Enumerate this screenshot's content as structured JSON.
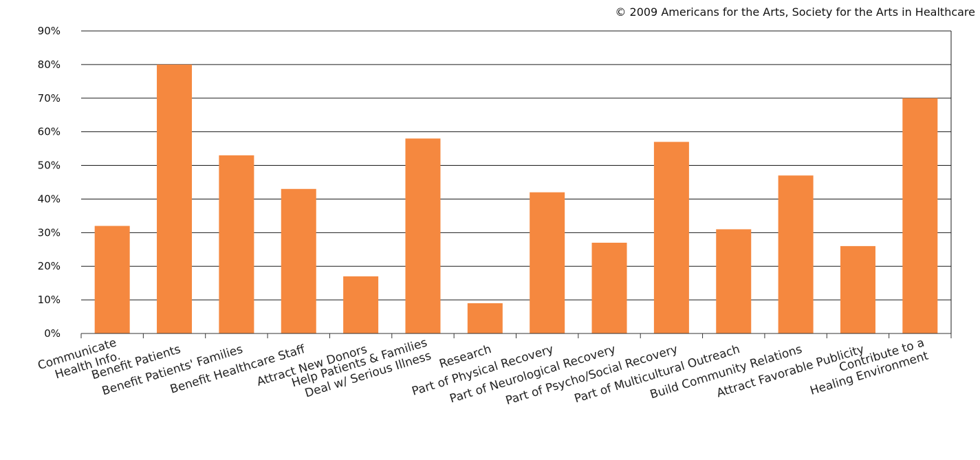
{
  "copyright": "© 2009 Americans for the Arts, Society for the Arts in Healthcare",
  "chart_data": {
    "type": "bar",
    "title": "",
    "xlabel": "",
    "ylabel": "",
    "categories": [
      [
        "Communicate",
        "Health Info."
      ],
      [
        "Benefit Patients"
      ],
      [
        "Benefit Patients' Families"
      ],
      [
        "Benefit Healthcare Staff"
      ],
      [
        "Attract New Donors"
      ],
      [
        "Help Patients & Families",
        "Deal w/ Serious Illness"
      ],
      [
        "Research"
      ],
      [
        "Part of Physical Recovery"
      ],
      [
        "Part of Neurological Recovery"
      ],
      [
        "Part of Psycho/Social Recovery"
      ],
      [
        "Part of Multicultural Outreach"
      ],
      [
        "Build Community Relations"
      ],
      [
        "Attract Favorable Publicity"
      ],
      [
        "Contribute to a",
        "Healing Environment"
      ]
    ],
    "values": [
      32,
      80,
      53,
      43,
      17,
      58,
      9,
      42,
      27,
      57,
      31,
      47,
      26,
      70
    ],
    "ylim": [
      0,
      90
    ],
    "yticks": [
      "0%",
      "10%",
      "20%",
      "30%",
      "40%",
      "50%",
      "60%",
      "70%",
      "80%",
      "90%"
    ],
    "grid": true,
    "colors": {
      "bar": "#F5883F",
      "grid": "#1a1a1a",
      "axis": "#333333"
    }
  }
}
